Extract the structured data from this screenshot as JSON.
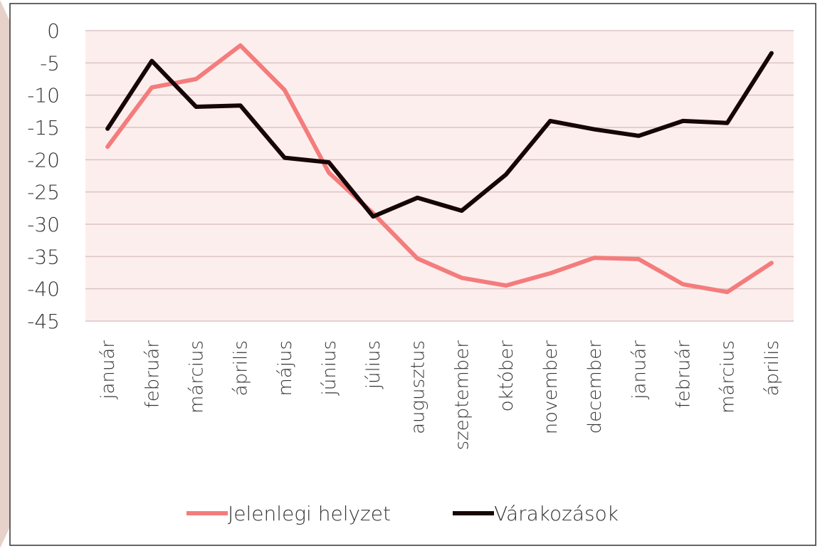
{
  "chart_data": {
    "type": "line",
    "categories": [
      "január",
      "február",
      "március",
      "április",
      "május",
      "június",
      "július",
      "augusztus",
      "szeptember",
      "október",
      "november",
      "december",
      "január",
      "február",
      "március",
      "április"
    ],
    "series": [
      {
        "name": "Jelenlegi helyzet",
        "color": "#f47c7c",
        "values": [
          -18,
          -8.8,
          -7.5,
          -2.3,
          -9.2,
          -22,
          -28.3,
          -35.3,
          -38.3,
          -39.5,
          -37.6,
          -35.2,
          -35.4,
          -39.3,
          -40.5,
          -36
        ]
      },
      {
        "name": "Várakozások",
        "color": "#160606",
        "values": [
          -15.2,
          -4.7,
          -11.8,
          -11.6,
          -19.7,
          -20.4,
          -28.8,
          -25.9,
          -27.9,
          -22.3,
          -14,
          -15.3,
          -16.3,
          -14,
          -14.3,
          -3.5
        ]
      }
    ],
    "ylim": [
      -45,
      0
    ],
    "yticks": [
      0,
      -5,
      -10,
      -15,
      -20,
      -25,
      -30,
      -35,
      -40,
      -45
    ],
    "grid": true,
    "legend": "bottom"
  }
}
